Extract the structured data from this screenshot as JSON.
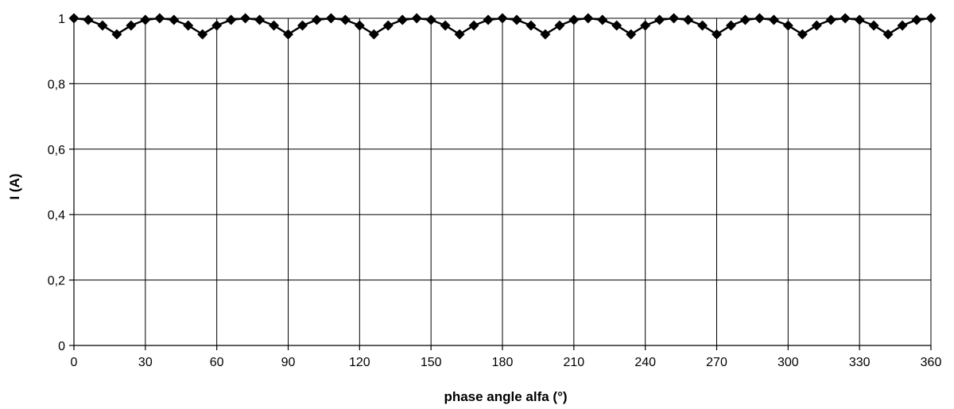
{
  "chart_data": {
    "type": "line",
    "xlabel": "phase angle alfa (°)",
    "ylabel": "I (A)",
    "xlim": [
      0,
      360
    ],
    "ylim": [
      0,
      1
    ],
    "x_ticks": [
      0,
      30,
      60,
      90,
      120,
      150,
      180,
      210,
      240,
      270,
      300,
      330,
      360
    ],
    "x_tick_labels": [
      "0",
      "30",
      "60",
      "90",
      "120",
      "150",
      "180",
      "210",
      "240",
      "270",
      "300",
      "330",
      "360"
    ],
    "y_ticks": [
      0,
      0.2,
      0.4,
      0.6,
      0.8,
      1
    ],
    "y_tick_labels": [
      "0",
      "0,2",
      "0,4",
      "0,6",
      "0,8",
      "1"
    ],
    "grid": true,
    "legend": "none",
    "marker": "diamond",
    "series": [
      {
        "color": "#000000",
        "x": [
          0,
          6,
          12,
          18,
          24,
          30,
          36,
          42,
          48,
          54,
          60,
          66,
          72,
          78,
          84,
          90,
          96,
          102,
          108,
          114,
          120,
          126,
          132,
          138,
          144,
          150,
          156,
          162,
          168,
          174,
          180,
          186,
          192,
          198,
          204,
          210,
          216,
          222,
          228,
          234,
          240,
          246,
          252,
          258,
          264,
          270,
          276,
          282,
          288,
          294,
          300,
          306,
          312,
          318,
          324,
          330,
          336,
          342,
          348,
          354,
          360
        ],
        "y": [
          1,
          0.995,
          0.978,
          0.951,
          0.978,
          0.995,
          1,
          0.995,
          0.978,
          0.951,
          0.978,
          0.995,
          1,
          0.995,
          0.978,
          0.951,
          0.978,
          0.995,
          1,
          0.995,
          0.978,
          0.951,
          0.978,
          0.995,
          1,
          0.995,
          0.978,
          0.951,
          0.978,
          0.995,
          1,
          0.995,
          0.978,
          0.951,
          0.978,
          0.995,
          1,
          0.995,
          0.978,
          0.951,
          0.978,
          0.995,
          1,
          0.995,
          0.978,
          0.951,
          0.978,
          0.995,
          1,
          0.995,
          0.978,
          0.951,
          0.978,
          0.995,
          1,
          0.995,
          0.978,
          0.951,
          0.978,
          0.995,
          1
        ]
      }
    ]
  }
}
